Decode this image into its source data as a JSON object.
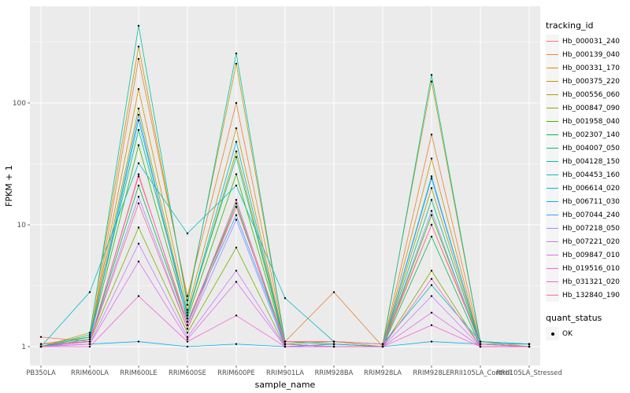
{
  "chart_data": {
    "type": "line",
    "title": "",
    "xlabel": "sample_name",
    "ylabel": "FPKM + 1",
    "y_scale": "log10",
    "y_ticks": [
      1,
      10,
      100
    ],
    "ylim": [
      0.7,
      620
    ],
    "grid": true,
    "legend_position": "right",
    "panel_bg": "#EBEBEB",
    "grid_color": "#FFFFFF",
    "tick_label_color": "#4D4D4D",
    "point_color": "#000000",
    "categories": [
      "PB350LA",
      "RRIM600LA",
      "RRIM600LE",
      "RRIM600SE",
      "RRIM600PE",
      "RRIM901LA",
      "RRIM928BA",
      "RRIM928LA",
      "RRIM928LE",
      "RRII105LA_Control",
      "RRII105LA_Stressed"
    ],
    "series": [
      {
        "name": "Hb_000031_240",
        "color": "#F8766D",
        "values": [
          1.2,
          1.1,
          25,
          1.6,
          14,
          1.1,
          1.05,
          1.0,
          10,
          1.1,
          1.05
        ]
      },
      {
        "name": "Hb_000139_040",
        "color": "#EA8331",
        "values": [
          1.0,
          1.15,
          230,
          2.6,
          100,
          1.1,
          2.8,
          1.0,
          55,
          1.1,
          1.0
        ]
      },
      {
        "name": "Hb_000331_170",
        "color": "#D89000",
        "values": [
          1.05,
          1.2,
          130,
          2.0,
          62,
          1.05,
          1.1,
          1.0,
          35,
          1.05,
          1.0
        ]
      },
      {
        "name": "Hb_000375_220",
        "color": "#C09B00",
        "values": [
          1.0,
          1.3,
          290,
          2.4,
          210,
          1.1,
          1.1,
          1.05,
          150,
          1.1,
          1.05
        ]
      },
      {
        "name": "Hb_000556_060",
        "color": "#A3A500",
        "values": [
          1.0,
          1.2,
          90,
          1.8,
          40,
          1.05,
          1.0,
          1.0,
          20,
          1.05,
          1.0
        ]
      },
      {
        "name": "Hb_000847_090",
        "color": "#7CAE00",
        "values": [
          1.0,
          1.1,
          9.5,
          1.3,
          6.5,
          1.0,
          1.05,
          1.0,
          4.2,
          1.0,
          1.0
        ]
      },
      {
        "name": "Hb_001958_040",
        "color": "#39B600",
        "values": [
          1.0,
          1.15,
          45,
          1.7,
          26,
          1.05,
          1.0,
          1.0,
          12,
          1.05,
          1.0
        ]
      },
      {
        "name": "Hb_002307_140",
        "color": "#00BB4E",
        "values": [
          1.0,
          1.1,
          21,
          1.5,
          15,
          1.0,
          1.0,
          1.0,
          8,
          1.0,
          1.0
        ]
      },
      {
        "name": "Hb_004007_050",
        "color": "#00BF7D",
        "values": [
          1.0,
          1.2,
          60,
          1.9,
          36,
          1.05,
          1.0,
          1.0,
          16,
          1.05,
          1.0
        ]
      },
      {
        "name": "Hb_004128_150",
        "color": "#00C1A7",
        "values": [
          1.0,
          1.25,
          430,
          2.2,
          255,
          1.1,
          1.05,
          1.0,
          170,
          1.1,
          1.05
        ]
      },
      {
        "name": "Hb_004453_160",
        "color": "#00BFC4",
        "values": [
          1.0,
          2.8,
          32,
          8.5,
          21,
          2.5,
          1.1,
          1.05,
          3.2,
          1.1,
          1.05
        ]
      },
      {
        "name": "Hb_006614_020",
        "color": "#00BAE0",
        "values": [
          1.0,
          1.15,
          72,
          1.8,
          48,
          1.05,
          1.0,
          1.0,
          25,
          1.05,
          1.0
        ]
      },
      {
        "name": "Hb_006711_030",
        "color": "#00B0F6",
        "values": [
          1.0,
          1.05,
          1.1,
          1.0,
          1.05,
          1.0,
          1.05,
          1.0,
          1.1,
          1.05,
          1.05
        ]
      },
      {
        "name": "Hb_007044_240",
        "color": "#35A2FF",
        "values": [
          1.0,
          1.1,
          80,
          1.6,
          12,
          1.05,
          1.0,
          1.0,
          24,
          1.05,
          1.0
        ]
      },
      {
        "name": "Hb_007218_050",
        "color": "#9590FF",
        "values": [
          1.0,
          1.1,
          17,
          1.4,
          11,
          1.0,
          1.0,
          1.0,
          13,
          1.0,
          1.0
        ]
      },
      {
        "name": "Hb_007221_020",
        "color": "#C77CFF",
        "values": [
          1.0,
          1.05,
          7,
          1.2,
          4.2,
          1.0,
          1.0,
          1.0,
          2.6,
          1.0,
          1.0
        ]
      },
      {
        "name": "Hb_009847_010",
        "color": "#E76BF3",
        "values": [
          1.0,
          1.05,
          5,
          1.15,
          3.4,
          1.0,
          1.0,
          1.0,
          1.9,
          1.0,
          1.0
        ]
      },
      {
        "name": "Hb_019516_010",
        "color": "#FA62DB",
        "values": [
          1.0,
          1.0,
          2.6,
          1.1,
          1.8,
          1.0,
          1.0,
          1.0,
          1.5,
          1.0,
          1.0
        ]
      },
      {
        "name": "Hb_031321_020",
        "color": "#FF62BC",
        "values": [
          1.0,
          1.1,
          26,
          1.5,
          16,
          1.05,
          1.0,
          1.0,
          3.6,
          1.0,
          1.0
        ]
      },
      {
        "name": "Hb_132840_190",
        "color": "#FF6A98",
        "values": [
          1.05,
          1.1,
          15,
          1.4,
          14,
          1.1,
          1.1,
          1.05,
          10,
          1.05,
          1.0
        ]
      }
    ],
    "legend": {
      "tracking_title": "tracking_id",
      "quant_title": "quant_status",
      "quant_items": [
        "OK"
      ]
    }
  }
}
